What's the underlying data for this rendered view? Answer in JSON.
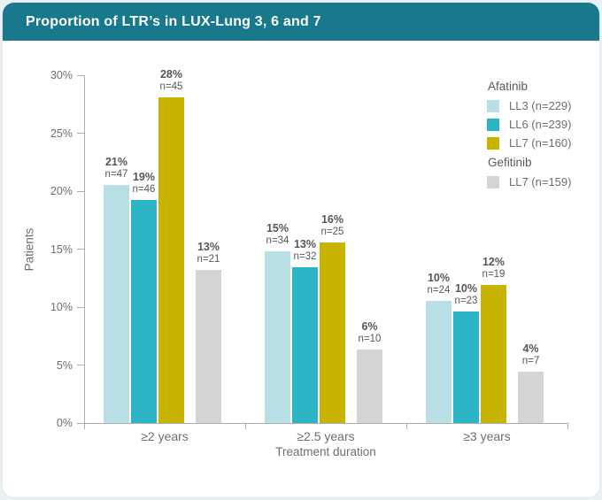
{
  "header": {
    "title": "Proportion of LTR’s in LUX-Lung 3, 6 and 7"
  },
  "colors": {
    "header_bar": "#17798b",
    "afatinib_ll3": "#b9dfe6",
    "afatinib_ll6": "#2bb4c4",
    "afatinib_ll7": "#c8b400",
    "gefitinib_ll7": "#d4d4d6",
    "axis": "#aaacae",
    "tick_text": "#6d6e70",
    "bar_label_text": "#56575a"
  },
  "chart_data": {
    "type": "bar",
    "title": "Proportion of LTR’s in LUX-Lung 3, 6 and 7",
    "xlabel": "Treatment duration",
    "ylabel": "Patients",
    "ylim": [
      0,
      30
    ],
    "grid": false,
    "yticks": [
      {
        "value": 0,
        "label": "0%"
      },
      {
        "value": 5,
        "label": "5%"
      },
      {
        "value": 10,
        "label": "10%"
      },
      {
        "value": 15,
        "label": "15%"
      },
      {
        "value": 20,
        "label": "20%"
      },
      {
        "value": 25,
        "label": "25%"
      },
      {
        "value": 30,
        "label": "30%"
      }
    ],
    "categories": [
      "≥2 years",
      "≥2.5 years",
      "≥3 years"
    ],
    "series": [
      {
        "name": "LL3 (n=229)",
        "group": "Afatinib",
        "color_key": "afatinib_ll3",
        "values_pct": [
          20.5,
          14.8,
          10.5
        ],
        "bar_labels": [
          [
            "21%",
            "n=47"
          ],
          [
            "15%",
            "n=34"
          ],
          [
            "10%",
            "n=24"
          ]
        ]
      },
      {
        "name": "LL6 (n=239)",
        "group": "Afatinib",
        "color_key": "afatinib_ll6",
        "values_pct": [
          19.2,
          13.4,
          9.6
        ],
        "bar_labels": [
          [
            "19%",
            "n=46"
          ],
          [
            "13%",
            "n=32"
          ],
          [
            "10%",
            "n=23"
          ]
        ]
      },
      {
        "name": "LL7 (n=160)",
        "group": "Afatinib",
        "color_key": "afatinib_ll7",
        "values_pct": [
          28.1,
          15.6,
          11.9
        ],
        "bar_labels": [
          [
            "28%",
            "n=45"
          ],
          [
            "16%",
            "n=25"
          ],
          [
            "12%",
            "n=19"
          ]
        ]
      },
      {
        "name": "LL7 (n=159)",
        "group": "Gefitinib",
        "color_key": "gefitinib_ll7",
        "values_pct": [
          13.2,
          6.3,
          4.4
        ],
        "bar_labels": [
          [
            "13%",
            "n=21"
          ],
          [
            "6%",
            "n=10"
          ],
          [
            "4%",
            "n=7"
          ]
        ]
      }
    ],
    "legend": {
      "position": "top-right",
      "sections": [
        {
          "title": "Afatinib",
          "items": [
            {
              "label": "LL3 (n=229)",
              "color_key": "afatinib_ll3"
            },
            {
              "label": "LL6 (n=239)",
              "color_key": "afatinib_ll6"
            },
            {
              "label": "LL7 (n=160)",
              "color_key": "afatinib_ll7"
            }
          ]
        },
        {
          "title": "Gefitinib",
          "items": [
            {
              "label": "LL7 (n=159)",
              "color_key": "gefitinib_ll7"
            }
          ]
        }
      ]
    }
  }
}
